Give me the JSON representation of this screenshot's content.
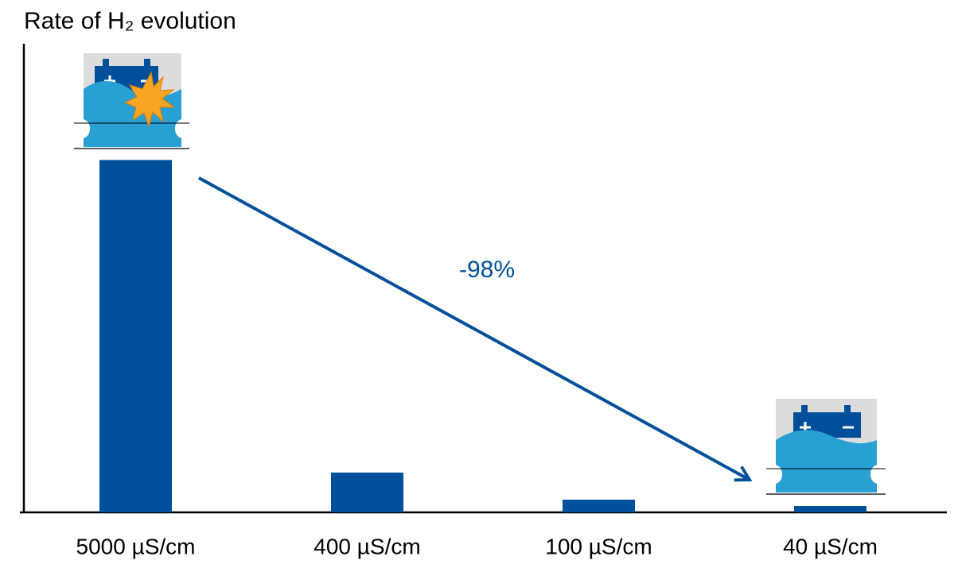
{
  "chart_data": {
    "type": "bar",
    "title": "Rate of H₂ evolution",
    "categories": [
      "5000 µS/cm",
      "400 µS/cm",
      "100 µS/cm",
      "40 µS/cm"
    ],
    "values": [
      100,
      11.3,
      3.6,
      1.8
    ],
    "color": "#004f9a",
    "ylim": [
      0,
      133
    ],
    "annotation": "-98%"
  }
}
